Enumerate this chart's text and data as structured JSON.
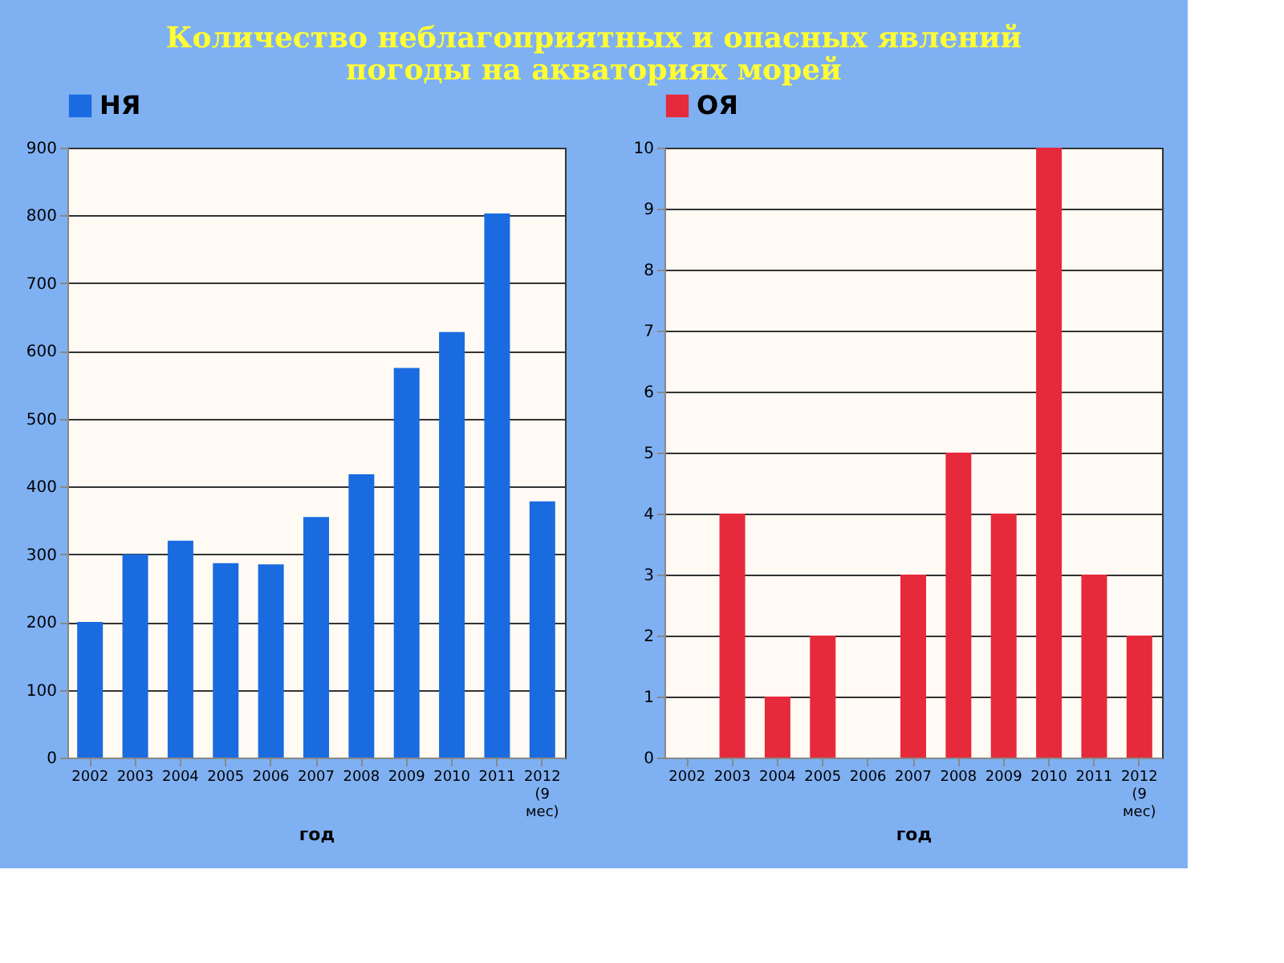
{
  "chart_data": [
    {
      "type": "bar",
      "title": "Количество неблагоприятных и опасных явлений погоды на акваториях морей",
      "xlabel": "год",
      "categories": [
        "2002",
        "2003",
        "2004",
        "2005",
        "2006",
        "2007",
        "2008",
        "2009",
        "2010",
        "2011",
        "2012 (9 мес)"
      ],
      "series": [
        {
          "name": "НЯ",
          "color": "#1a6be0",
          "values": [
            200,
            300,
            320,
            287,
            285,
            355,
            418,
            575,
            628,
            803,
            378
          ]
        }
      ],
      "ylim": [
        0,
        900
      ],
      "yticks": [
        0,
        100,
        200,
        300,
        400,
        500,
        600,
        700,
        800,
        900
      ],
      "grid": "y",
      "legend": "top"
    },
    {
      "type": "bar",
      "xlabel": "год",
      "categories": [
        "2002",
        "2003",
        "2004",
        "2005",
        "2006",
        "2007",
        "2008",
        "2009",
        "2010",
        "2011",
        "2012 (9 мес)"
      ],
      "series": [
        {
          "name": "ОЯ",
          "color": "#e62a3c",
          "values": [
            0,
            4,
            1,
            2,
            0,
            3,
            5,
            4,
            10,
            3,
            2
          ]
        }
      ],
      "ylim": [
        0,
        10
      ],
      "yticks": [
        0,
        1,
        2,
        3,
        4,
        5,
        6,
        7,
        8,
        9,
        10
      ],
      "grid": "y",
      "legend": "top"
    }
  ]
}
